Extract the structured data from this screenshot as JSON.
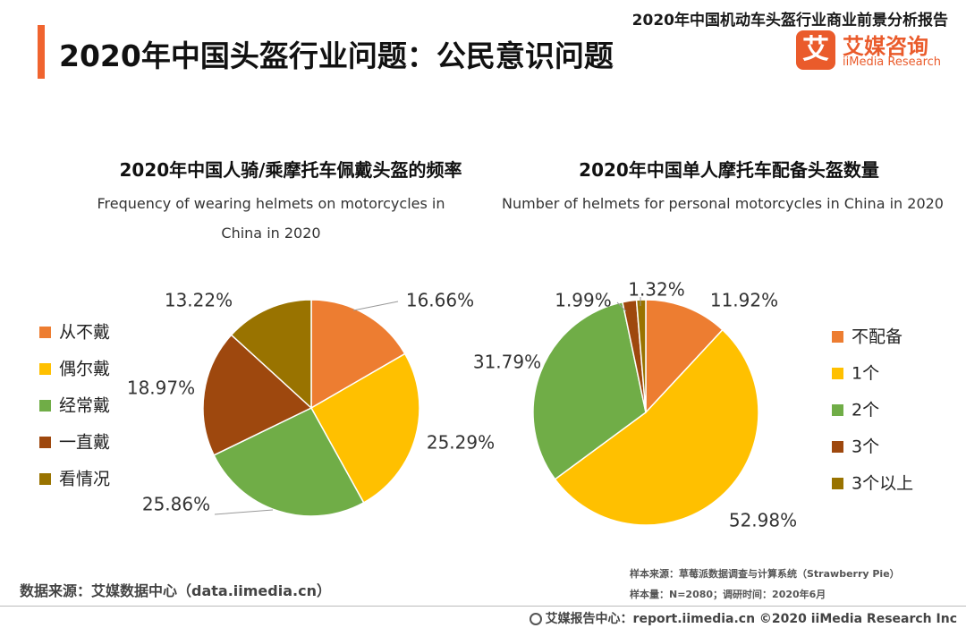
{
  "header": {
    "report_title": "2020年中国机动车头盔行业商业前景分析报告",
    "page_title": "2020年中国头盔行业问题：公民意识问题",
    "logo_cn": "艾媒咨询",
    "logo_en": "iiMedia Research",
    "logo_mark": "艾"
  },
  "colors": {
    "accent": "#f0642f",
    "orange": "#ed7d31",
    "yellow": "#ffc000",
    "green": "#70ad47",
    "brown": "#9e480e",
    "olive": "#997300"
  },
  "chart_data": [
    {
      "type": "pie",
      "title": "2020年中国人骑/乘摩托车佩戴头盔的频率",
      "subtitle": "Frequency of wearing helmets on motorcycles in China in 2020",
      "legend_position": "left",
      "slices": [
        {
          "name": "从不戴",
          "value": 16.66,
          "label": "16.66%",
          "color": "#ed7d31"
        },
        {
          "name": "偶尔戴",
          "value": 25.29,
          "label": "25.29%",
          "color": "#ffc000"
        },
        {
          "name": "经常戴",
          "value": 25.86,
          "label": "25.86%",
          "color": "#70ad47"
        },
        {
          "name": "一直戴",
          "value": 18.97,
          "label": "18.97%",
          "color": "#9e480e"
        },
        {
          "name": "看情况",
          "value": 13.22,
          "label": "13.22%",
          "color": "#997300"
        }
      ]
    },
    {
      "type": "pie",
      "title": "2020年中国单人摩托车配备头盔数量",
      "subtitle": "Number of helmets for personal motorcycles in China in 2020",
      "legend_position": "right",
      "slices": [
        {
          "name": "不配备",
          "value": 11.92,
          "label": "11.92%",
          "color": "#ed7d31"
        },
        {
          "name": "1个",
          "value": 52.98,
          "label": "52.98%",
          "color": "#ffc000"
        },
        {
          "name": "2个",
          "value": 31.79,
          "label": "31.79%",
          "color": "#70ad47"
        },
        {
          "name": "3个",
          "value": 1.99,
          "label": "1.99%",
          "color": "#9e480e"
        },
        {
          "name": "3个以上",
          "value": 1.32,
          "label": "1.32%",
          "color": "#997300"
        }
      ]
    }
  ],
  "footer": {
    "source": "数据来源：艾媒数据中心（data.iimedia.cn）",
    "sample_source": "样本来源：草莓派数据调查与计算系统（Strawberry Pie）",
    "sample_size": "样本量：N=2080；调研时间：2020年6月",
    "site": "艾媒报告中心：report.iimedia.cn  ©2020  iiMedia Research  Inc",
    "site_icon": "globe-icon"
  }
}
